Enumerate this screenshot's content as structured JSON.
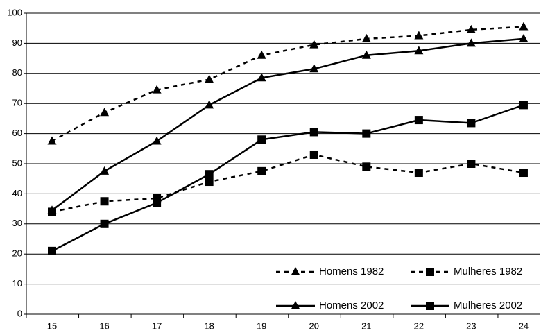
{
  "chart_data": {
    "type": "line",
    "categories": [
      "15",
      "16",
      "17",
      "18",
      "19",
      "20",
      "21",
      "22",
      "23",
      "24"
    ],
    "series": [
      {
        "name": "Homens 1982",
        "color": "#000000",
        "dash": true,
        "marker": "triangle",
        "values": [
          57.5,
          67,
          74.5,
          78,
          86,
          89.5,
          91.5,
          92.5,
          94.5,
          95.5
        ]
      },
      {
        "name": "Mulheres 1982",
        "color": "#000000",
        "dash": true,
        "marker": "square",
        "values": [
          34,
          37.5,
          38.5,
          44,
          47.5,
          53,
          49,
          47,
          50,
          47
        ]
      },
      {
        "name": "Homens 2002",
        "color": "#000000",
        "dash": false,
        "marker": "triangle",
        "values": [
          34.5,
          47.5,
          57.5,
          69.5,
          78.5,
          81.5,
          86,
          87.5,
          90,
          91.5
        ]
      },
      {
        "name": "Mulheres 2002",
        "color": "#000000",
        "dash": false,
        "marker": "square",
        "values": [
          21,
          30,
          37,
          46.5,
          58,
          60.5,
          60,
          64.5,
          63.5,
          69.5
        ]
      }
    ],
    "ylim": [
      0,
      100
    ],
    "yticks": [
      0,
      10,
      20,
      30,
      40,
      50,
      60,
      70,
      80,
      90,
      100
    ],
    "grid": true
  }
}
